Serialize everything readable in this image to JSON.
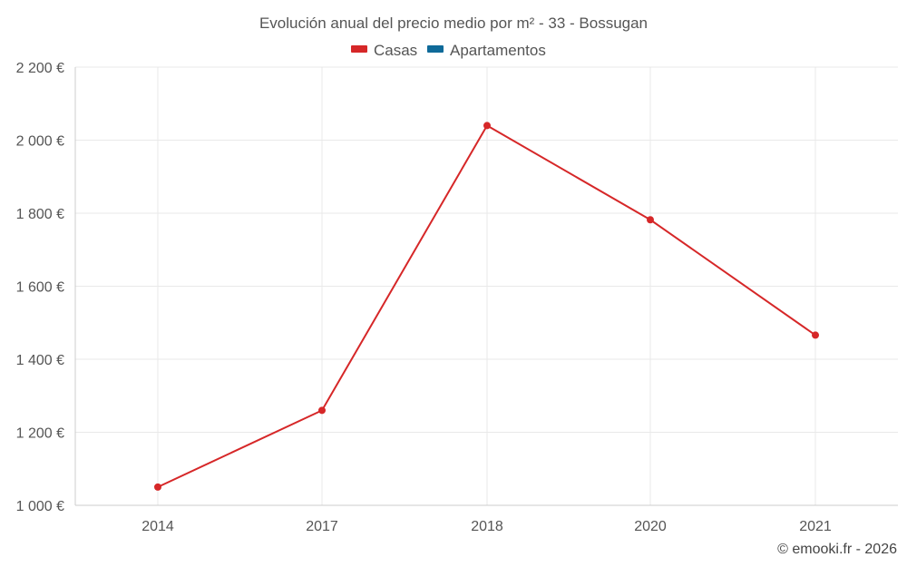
{
  "chart_data": {
    "type": "line",
    "title": "Evolución anual del precio medio por m² - 33 - Bossugan",
    "categories": [
      "2014",
      "2017",
      "2018",
      "2020",
      "2021"
    ],
    "series": [
      {
        "name": "Casas",
        "color": "#d62728",
        "values": [
          1050,
          1260,
          2040,
          1782,
          1466
        ]
      },
      {
        "name": "Apartamentos",
        "color": "#0f6a99",
        "values": [
          null,
          null,
          null,
          null,
          null
        ]
      }
    ],
    "ylim": [
      1000,
      2200
    ],
    "y_ticks": [
      1000,
      1200,
      1400,
      1600,
      1800,
      2000,
      2200
    ],
    "y_tick_labels": [
      "1 000 €",
      "1 200 €",
      "1 400 €",
      "1 600 €",
      "1 800 €",
      "2 000 €",
      "2 200 €"
    ],
    "grid": true,
    "legend_position": "top-center"
  },
  "credit": "© emooki.fr - 2026"
}
